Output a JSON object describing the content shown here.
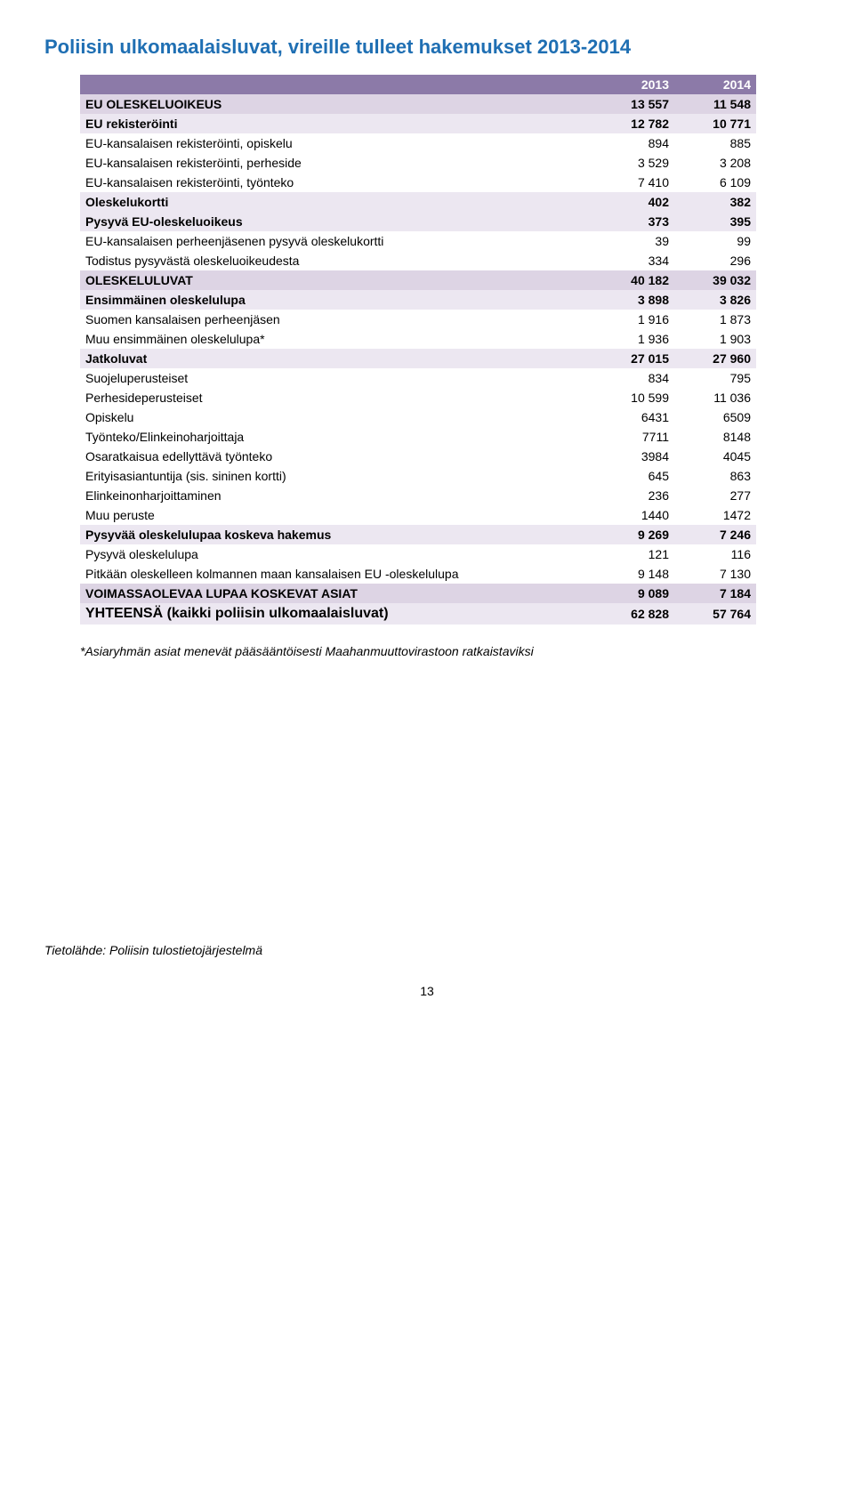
{
  "title": "Poliisin ulkomaalaisluvat, vireille tulleet hakemukset 2013-2014",
  "title_color": "#1f6fb3",
  "columns": [
    "2013",
    "2014"
  ],
  "header_bg": "#8c7aa8",
  "band1_bg": "#ddd4e4",
  "band2_bg": "#ece7f1",
  "band3_bg": "#ffffff",
  "rows": [
    {
      "label": "EU OLESKELUOIKEUS",
      "v1": "13 557",
      "v2": "11 548",
      "band": "band1",
      "bold": true,
      "indent": 0
    },
    {
      "label": "EU rekisteröinti",
      "v1": "12 782",
      "v2": "10 771",
      "band": "band2",
      "bold": true,
      "indent": 1
    },
    {
      "label": "EU-kansalaisen rekisteröinti, opiskelu",
      "v1": "894",
      "v2": "885",
      "band": "band3",
      "bold": false,
      "indent": 2
    },
    {
      "label": "EU-kansalaisen rekisteröinti, perheside",
      "v1": "3 529",
      "v2": "3 208",
      "band": "band3",
      "bold": false,
      "indent": 2
    },
    {
      "label": "EU-kansalaisen rekisteröinti, työnteko",
      "v1": "7 410",
      "v2": "6 109",
      "band": "band3",
      "bold": false,
      "indent": 2
    },
    {
      "label": "Oleskelukortti",
      "v1": "402",
      "v2": "382",
      "band": "band2",
      "bold": true,
      "indent": 1
    },
    {
      "label": "Pysyvä EU-oleskeluoikeus",
      "v1": "373",
      "v2": "395",
      "band": "band2",
      "bold": true,
      "indent": 1
    },
    {
      "label": "EU-kansalaisen perheenjäsenen pysyvä oleskelukortti",
      "v1": "39",
      "v2": "99",
      "band": "band3",
      "bold": false,
      "indent": 2
    },
    {
      "label": "Todistus pysyvästä oleskeluoikeudesta",
      "v1": "334",
      "v2": "296",
      "band": "band3",
      "bold": false,
      "indent": 2
    },
    {
      "label": "OLESKELULUVAT",
      "v1": "40 182",
      "v2": "39 032",
      "band": "band1",
      "bold": true,
      "indent": 0
    },
    {
      "label": "Ensimmäinen oleskelulupa",
      "v1": "3 898",
      "v2": "3 826",
      "band": "band2",
      "bold": true,
      "indent": 1
    },
    {
      "label": "Suomen kansalaisen perheenjäsen",
      "v1": "1 916",
      "v2": "1 873",
      "band": "band3",
      "bold": false,
      "indent": 2
    },
    {
      "label": "Muu ensimmäinen oleskelulupa*",
      "v1": "1 936",
      "v2": "1 903",
      "band": "band3",
      "bold": false,
      "indent": 2
    },
    {
      "label": "Jatkoluvat",
      "v1": "27 015",
      "v2": "27 960",
      "band": "band2",
      "bold": true,
      "indent": 1
    },
    {
      "label": "Suojeluperusteiset",
      "v1": "834",
      "v2": "795",
      "band": "band3",
      "bold": false,
      "indent": 2
    },
    {
      "label": "Perhesideperusteiset",
      "v1": "10 599",
      "v2": "11 036",
      "band": "band3",
      "bold": false,
      "indent": 2
    },
    {
      "label": "Opiskelu",
      "v1": "6431",
      "v2": "6509",
      "band": "band3",
      "bold": false,
      "indent": 2
    },
    {
      "label": "Työnteko/Elinkeinoharjoittaja",
      "v1": "7711",
      "v2": "8148",
      "band": "band3",
      "bold": false,
      "indent": 2
    },
    {
      "label": "Osaratkaisua edellyttävä työnteko",
      "v1": "3984",
      "v2": "4045",
      "band": "band3",
      "bold": false,
      "indent": 3
    },
    {
      "label": "Erityisasiantuntija (sis. sininen kortti)",
      "v1": "645",
      "v2": "863",
      "band": "band3",
      "bold": false,
      "indent": 3
    },
    {
      "label": "Elinkeinonharjoittaminen",
      "v1": "236",
      "v2": "277",
      "band": "band3",
      "bold": false,
      "indent": 3
    },
    {
      "label": "Muu peruste",
      "v1": "1440",
      "v2": "1472",
      "band": "band3",
      "bold": false,
      "indent": 2
    },
    {
      "label": "Pysyvää oleskelulupaa koskeva hakemus",
      "v1": "9 269",
      "v2": "7 246",
      "band": "band2",
      "bold": true,
      "indent": 1
    },
    {
      "label": "Pysyvä oleskelulupa",
      "v1": "121",
      "v2": "116",
      "band": "band3",
      "bold": false,
      "indent": 2
    },
    {
      "label": "Pitkään oleskelleen kolmannen maan kansalaisen EU -oleskelulupa",
      "v1": "9 148",
      "v2": "7 130",
      "band": "band3",
      "bold": false,
      "indent": 2
    },
    {
      "label": "VOIMASSAOLEVAA LUPAA KOSKEVAT ASIAT",
      "v1": "9 089",
      "v2": "7 184",
      "band": "band1",
      "bold": true,
      "indent": 0
    },
    {
      "label": "YHTEENSÄ (kaikki poliisin ulkomaalaisluvat)",
      "v1": "62 828",
      "v2": "57 764",
      "band": "band2",
      "bold": true,
      "indent": 0,
      "big": true
    }
  ],
  "footnote": "*Asiaryhmän asiat menevät pääsääntöisesti Maahanmuuttovirastoon ratkaistaviksi",
  "source": "Tietolähde: Poliisin tulostietojärjestelmä",
  "pagenum": "13"
}
